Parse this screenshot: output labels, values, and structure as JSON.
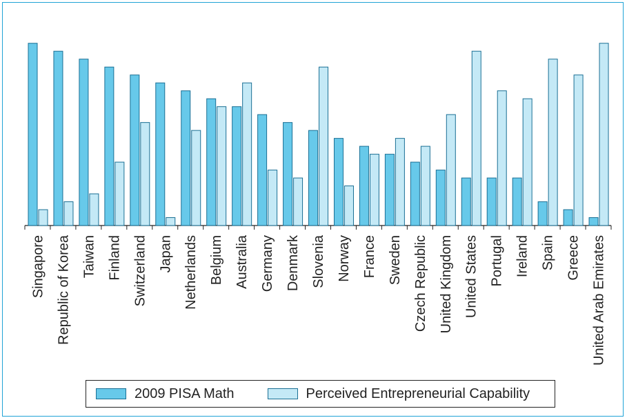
{
  "chart_data": {
    "type": "bar",
    "categories": [
      "Singapore",
      "Republic of Korea",
      "Taiwan",
      "Finland",
      "Switzerland",
      "Japan",
      "Netherlands",
      "Belgium",
      "Australia",
      "Germany",
      "Denmark",
      "Slovenia",
      "Norway",
      "France",
      "Sweden",
      "Czech Republic",
      "United Kingdom",
      "United States",
      "Portugal",
      "Ireland",
      "Spain",
      "Greece",
      "United Arab Emirates"
    ],
    "series": [
      {
        "name": "2009 PISA Math",
        "color": "#67c9ea",
        "values": [
          23,
          22,
          21,
          20,
          19,
          18,
          17,
          16,
          15,
          14,
          13,
          12,
          11,
          10,
          9,
          8,
          7,
          6,
          6,
          6,
          3,
          2,
          1
        ]
      },
      {
        "name": "Perceived Entrepreneurial Capability",
        "color": "#c4e9f6",
        "values": [
          2,
          3,
          4,
          8,
          13,
          1,
          12,
          15,
          18,
          7,
          6,
          20,
          5,
          9,
          11,
          10,
          14,
          22,
          17,
          16,
          21,
          19,
          23
        ]
      }
    ],
    "ylim": [
      0,
      23.5
    ],
    "grid": false,
    "legend_position": "bottom",
    "ylabel": "",
    "xlabel": ""
  }
}
